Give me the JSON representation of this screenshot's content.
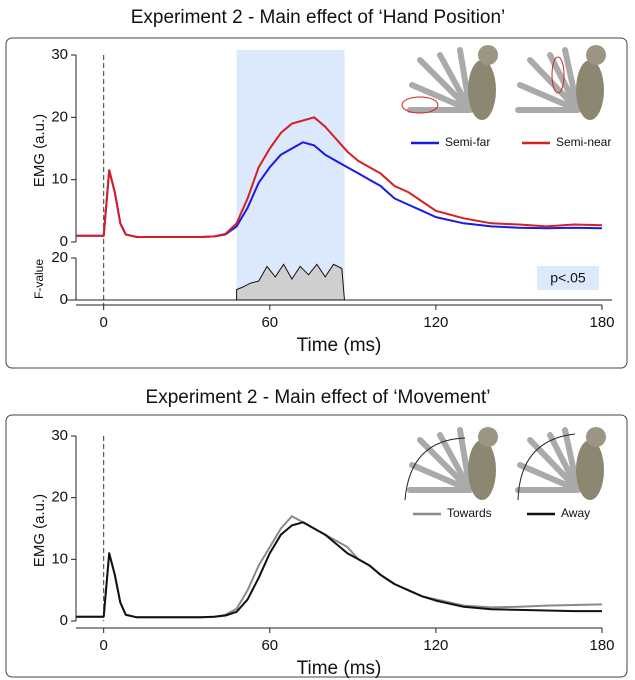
{
  "chart_data": [
    {
      "type": "line",
      "title": "Experiment 2 - Main effect of ‘Hand Position’",
      "xlabel": "Time (ms)",
      "ylabel": "EMG (a.u.)",
      "xlim": [
        -10,
        180
      ],
      "xticks": [
        0,
        60,
        120,
        180
      ],
      "ylim": [
        0,
        30
      ],
      "yticks": [
        0,
        10,
        20,
        30
      ],
      "x": [
        -10,
        -5,
        0,
        2,
        4,
        6,
        8,
        12,
        16,
        20,
        25,
        30,
        35,
        40,
        44,
        48,
        52,
        56,
        60,
        64,
        68,
        72,
        76,
        80,
        84,
        88,
        92,
        96,
        100,
        105,
        110,
        115,
        120,
        130,
        140,
        150,
        160,
        170,
        180
      ],
      "series": [
        {
          "name": "Semi-far",
          "color": "#1a1ae6",
          "values": [
            1,
            1,
            1,
            11.5,
            8,
            3,
            1.2,
            0.8,
            0.8,
            0.8,
            0.8,
            0.8,
            0.8,
            0.9,
            1.2,
            2.5,
            5.5,
            9.5,
            12,
            14,
            15,
            16,
            15.5,
            14,
            13,
            12,
            11,
            10,
            9,
            7,
            6,
            5,
            4,
            3,
            2.5,
            2.3,
            2.2,
            2.3,
            2.2
          ]
        },
        {
          "name": "Semi-near",
          "color": "#d42020",
          "values": [
            1,
            1,
            1,
            11.5,
            8,
            3,
            1.2,
            0.8,
            0.8,
            0.8,
            0.8,
            0.8,
            0.8,
            0.9,
            1.3,
            3,
            7,
            12,
            15,
            17.5,
            19,
            19.5,
            20,
            18.5,
            16.5,
            14.5,
            13,
            12,
            11,
            9,
            8,
            6.5,
            5,
            3.8,
            3,
            2.8,
            2.5,
            2.8,
            2.7
          ]
        }
      ]
    },
    {
      "type": "area",
      "ylabel": "F-value",
      "annotation": "p<.05",
      "color": "#cfcfcf",
      "ylim": [
        0,
        20
      ],
      "yticks": [
        0,
        20
      ],
      "x": [
        48,
        50,
        53,
        56,
        59,
        62,
        65,
        68,
        71,
        74,
        77,
        80,
        83,
        86,
        87
      ],
      "values": [
        5,
        6,
        8,
        9,
        16,
        11,
        17,
        10,
        16,
        12,
        17,
        11,
        17,
        15,
        0
      ]
    },
    {
      "type": "line",
      "title": "Experiment 2 - Main effect of ‘Movement’",
      "xlabel": "Time (ms)",
      "ylabel": "EMG (a.u.)",
      "xlim": [
        -10,
        180
      ],
      "xticks": [
        0,
        60,
        120,
        180
      ],
      "ylim": [
        0,
        30
      ],
      "yticks": [
        0,
        10,
        20,
        30
      ],
      "x": [
        -10,
        -5,
        0,
        2,
        4,
        6,
        8,
        12,
        16,
        20,
        25,
        30,
        35,
        40,
        44,
        48,
        52,
        56,
        60,
        64,
        68,
        72,
        76,
        80,
        84,
        88,
        92,
        96,
        100,
        105,
        110,
        115,
        120,
        130,
        140,
        150,
        160,
        170,
        180
      ],
      "series": [
        {
          "name": "Towards",
          "color": "#8a8a8a",
          "values": [
            0.7,
            0.7,
            0.7,
            11,
            7.5,
            3,
            1,
            0.6,
            0.6,
            0.6,
            0.6,
            0.6,
            0.6,
            0.7,
            1,
            2,
            5,
            9,
            12,
            15,
            17,
            16,
            15,
            14,
            13,
            12,
            10,
            9,
            7.5,
            6,
            5,
            4,
            3.5,
            2.5,
            2.2,
            2.3,
            2.5,
            2.6,
            2.7
          ]
        },
        {
          "name": "Away",
          "color": "#111111",
          "values": [
            0.7,
            0.7,
            0.7,
            11,
            7.5,
            3,
            1,
            0.6,
            0.6,
            0.6,
            0.6,
            0.6,
            0.6,
            0.7,
            0.9,
            1.5,
            3.5,
            7,
            11,
            14,
            15.5,
            16,
            15,
            14,
            12.5,
            11,
            10,
            9,
            7.5,
            6,
            5,
            4,
            3.3,
            2.3,
            1.9,
            1.8,
            1.7,
            1.6,
            1.6
          ]
        }
      ]
    }
  ]
}
